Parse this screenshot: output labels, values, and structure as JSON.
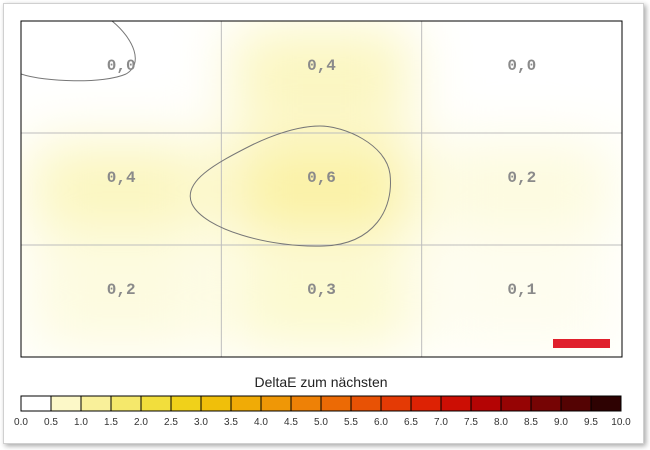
{
  "chart_data": {
    "type": "heatmap",
    "rows": 3,
    "cols": 3,
    "values": [
      [
        0.0,
        0.4,
        0.0
      ],
      [
        0.4,
        0.6,
        0.2
      ],
      [
        0.2,
        0.3,
        0.1
      ]
    ],
    "cell_labels": [
      [
        "0,0",
        "0,4",
        "0,0"
      ],
      [
        "0,4",
        "0,6",
        "0,2"
      ],
      [
        "0,2",
        "0,3",
        "0,1"
      ]
    ],
    "contours": [
      {
        "level": 0.5,
        "region": "center"
      },
      {
        "level": 0.0,
        "region": "top-left"
      }
    ],
    "grid": true,
    "marker": {
      "color": "#e0202c",
      "position": "bottom-right"
    },
    "colorbar": {
      "title": "DeltaE zum nächsten",
      "min": 0.0,
      "max": 10.0,
      "step": 0.5,
      "tick_labels": [
        "0.0",
        "0.5",
        "1.0",
        "1.5",
        "2.0",
        "2.5",
        "3.0",
        "3.5",
        "4.0",
        "4.5",
        "5.0",
        "5.5",
        "6.0",
        "6.5",
        "7.0",
        "7.5",
        "8.0",
        "8.5",
        "9.0",
        "9.5",
        "10.0"
      ],
      "colors": [
        "#ffffff",
        "#fcf8c8",
        "#f9f09a",
        "#f5e86b",
        "#f2de3c",
        "#f0d11a",
        "#f0bf0a",
        "#f0ab06",
        "#ef9706",
        "#ee8106",
        "#ec6a05",
        "#e85205",
        "#e43a05",
        "#dd2204",
        "#cc0e04",
        "#b40404",
        "#960404",
        "#760404",
        "#540303",
        "#2e0202"
      ]
    }
  }
}
